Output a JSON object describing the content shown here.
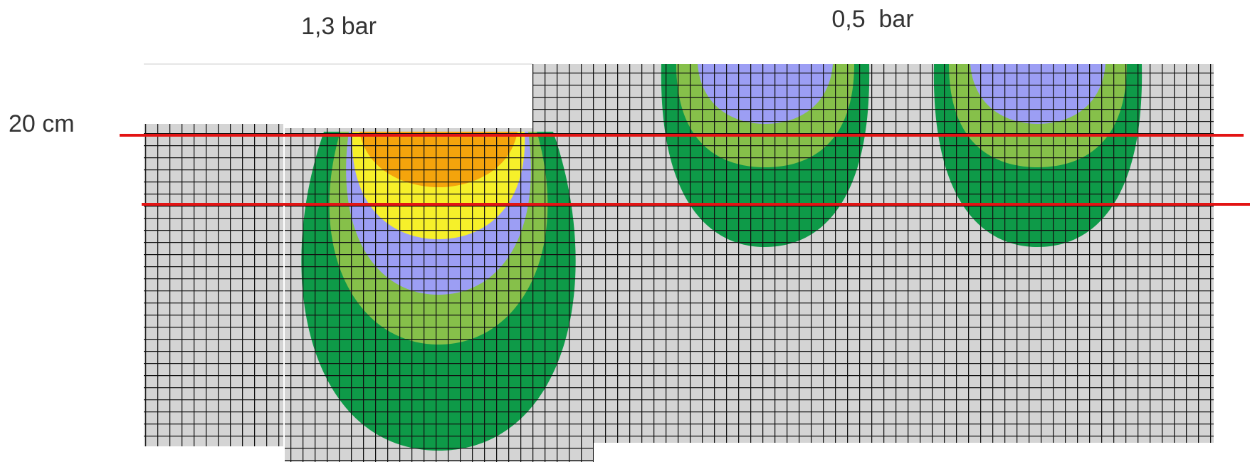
{
  "labels": {
    "left_pressure": "1,3 bar",
    "right_pressure": "0,5  bar",
    "depth": "20 cm"
  }
}
